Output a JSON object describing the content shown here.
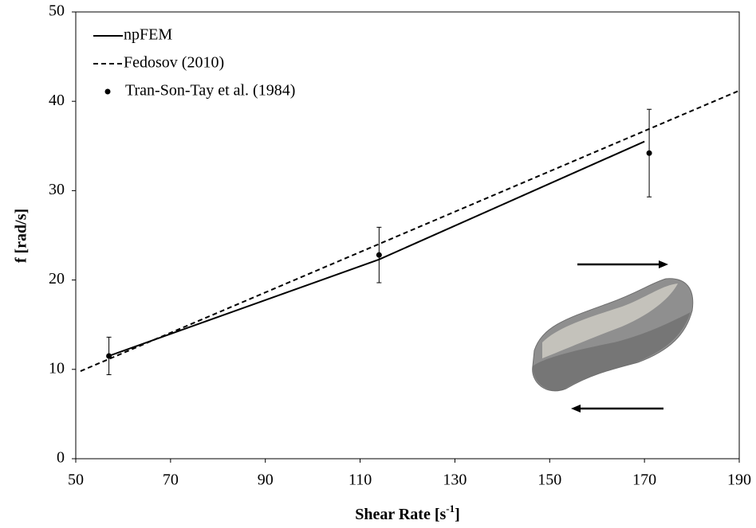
{
  "chart_data": {
    "type": "line",
    "x_label": {
      "text": "Shear Rate [s",
      "sup": "-1",
      "end": "]"
    },
    "y_label": "f [rad/s]",
    "xlim": [
      50,
      190
    ],
    "xticks": [
      50,
      70,
      90,
      110,
      130,
      150,
      170,
      190
    ],
    "ylim": [
      0,
      50
    ],
    "yticks": [
      0,
      10,
      20,
      30,
      40,
      50
    ],
    "grid": false,
    "legend": "upper left",
    "series": [
      {
        "name": "npFEM",
        "color": "#000000",
        "style": "solid",
        "x": [
          57,
          114,
          170
        ],
        "values": [
          11.5,
          22.3,
          35.5
        ]
      },
      {
        "name": "Fedosov (2010)",
        "color": "#000000",
        "style": "dashed",
        "x": [
          51,
          190
        ],
        "values": [
          9.8,
          41.2
        ]
      },
      {
        "name": "Tran-Son-Tay et al. (1984)",
        "color": "#000000",
        "style": "points",
        "x": [
          57,
          114,
          171
        ],
        "values": [
          11.5,
          22.8,
          34.2
        ],
        "errors": [
          2.1,
          3.1,
          4.9
        ]
      }
    ]
  }
}
